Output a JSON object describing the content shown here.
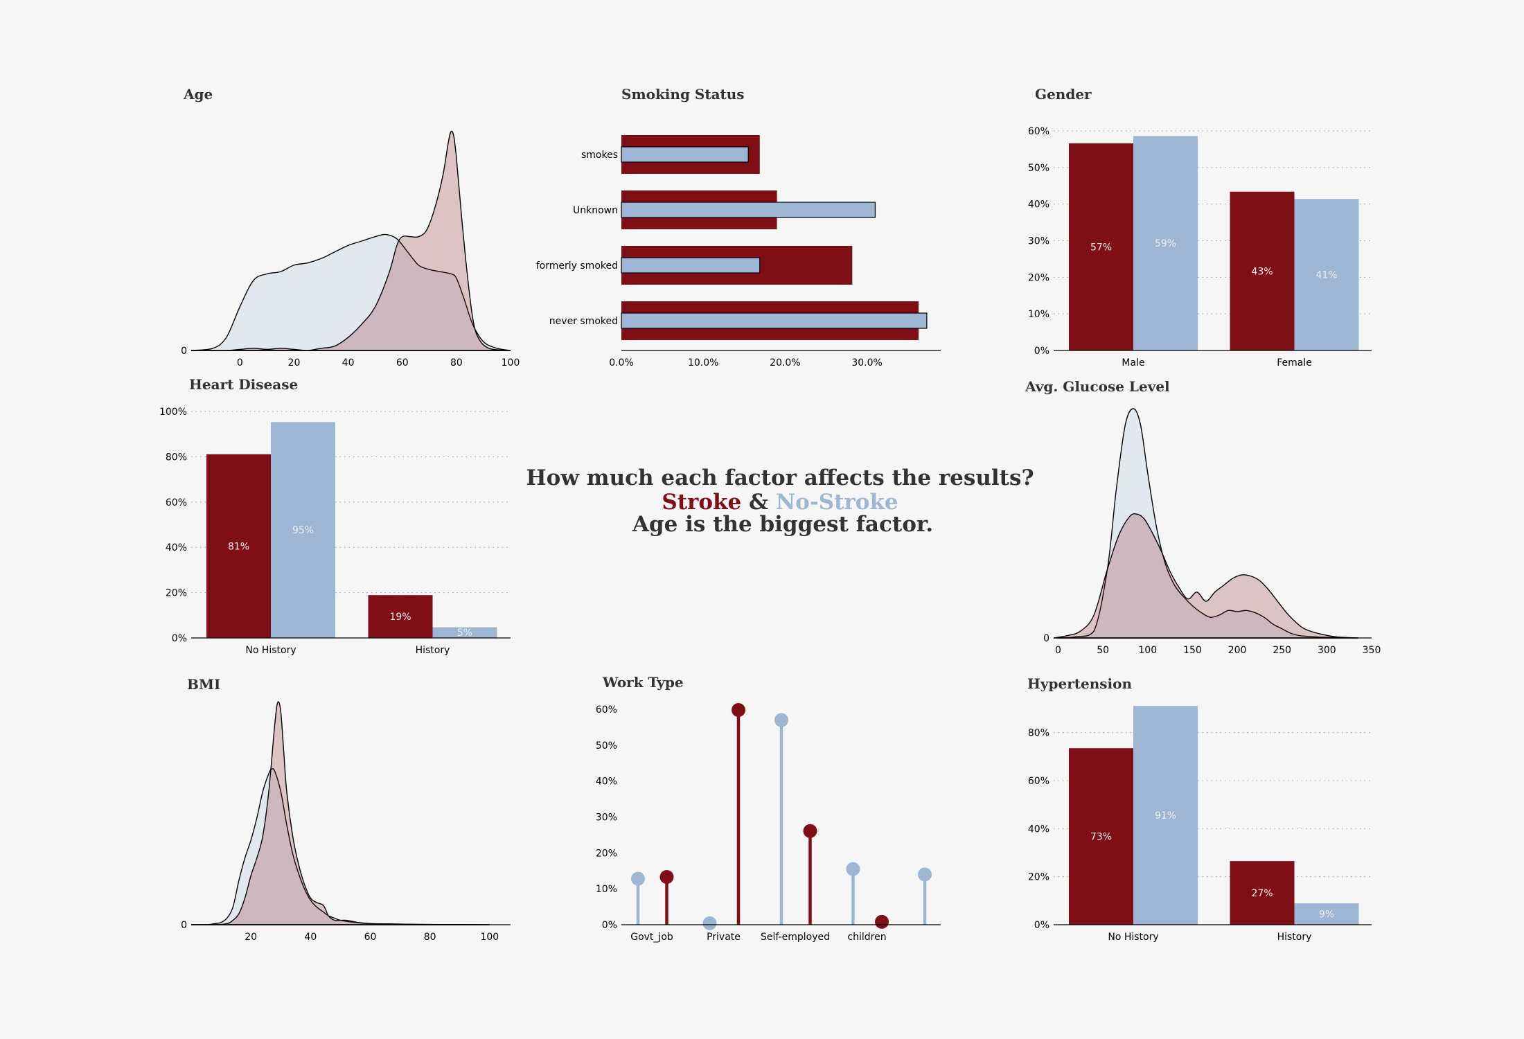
{
  "colors": {
    "stroke": "#800f15",
    "nostroke": "#9cb6d3",
    "text": "#323232"
  },
  "headline": {
    "line1": "How much each factor affects the results?",
    "stroke_word": "Stroke",
    "amp": " & ",
    "nostroke_word": "No-Stroke",
    "line3": "Age is the biggest factor."
  },
  "chart_data": [
    {
      "id": "age",
      "type": "area",
      "title": "Age",
      "xticks": [
        0,
        20,
        40,
        60,
        80,
        100
      ],
      "xlim": [
        -18,
        100
      ],
      "yticks": [
        0
      ],
      "ylim": [
        0,
        1
      ],
      "series": [
        {
          "group": "nostroke",
          "points": [
            [
              -18,
              0
            ],
            [
              -10,
              0.01
            ],
            [
              -5,
              0.06
            ],
            [
              0,
              0.2
            ],
            [
              5,
              0.32
            ],
            [
              10,
              0.35
            ],
            [
              15,
              0.36
            ],
            [
              20,
              0.39
            ],
            [
              25,
              0.4
            ],
            [
              30,
              0.42
            ],
            [
              35,
              0.45
            ],
            [
              40,
              0.48
            ],
            [
              45,
              0.5
            ],
            [
              50,
              0.52
            ],
            [
              54,
              0.53
            ],
            [
              58,
              0.51
            ],
            [
              62,
              0.45
            ],
            [
              66,
              0.39
            ],
            [
              70,
              0.37
            ],
            [
              74,
              0.36
            ],
            [
              78,
              0.35
            ],
            [
              80,
              0.33
            ],
            [
              83,
              0.23
            ],
            [
              86,
              0.12
            ],
            [
              90,
              0.04
            ],
            [
              95,
              0.01
            ],
            [
              100,
              0
            ]
          ]
        },
        {
          "group": "stroke",
          "points": [
            [
              -18,
              0
            ],
            [
              -5,
              0
            ],
            [
              0,
              0.005
            ],
            [
              5,
              0.01
            ],
            [
              10,
              0.005
            ],
            [
              15,
              0.01
            ],
            [
              20,
              0.005
            ],
            [
              25,
              0
            ],
            [
              30,
              0.01
            ],
            [
              35,
              0.02
            ],
            [
              40,
              0.06
            ],
            [
              45,
              0.12
            ],
            [
              50,
              0.2
            ],
            [
              55,
              0.35
            ],
            [
              58,
              0.48
            ],
            [
              60,
              0.52
            ],
            [
              63,
              0.52
            ],
            [
              66,
              0.52
            ],
            [
              69,
              0.55
            ],
            [
              72,
              0.65
            ],
            [
              75,
              0.8
            ],
            [
              77,
              0.95
            ],
            [
              78,
              1.0
            ],
            [
              79,
              0.98
            ],
            [
              80,
              0.88
            ],
            [
              82,
              0.6
            ],
            [
              84,
              0.35
            ],
            [
              86,
              0.15
            ],
            [
              88,
              0.06
            ],
            [
              92,
              0.01
            ],
            [
              100,
              0
            ]
          ]
        }
      ]
    },
    {
      "id": "smoking",
      "type": "bar",
      "title": "Smoking Status",
      "categories": [
        "smokes",
        "Unknown",
        "formerly smoked",
        "never smoked"
      ],
      "series": [
        {
          "group": "stroke",
          "values": [
            16.9,
            19.0,
            28.2,
            36.3
          ]
        },
        {
          "group": "nostroke",
          "values": [
            15.5,
            31.0,
            16.9,
            37.3
          ]
        }
      ],
      "xticks": [
        "0.0%",
        "10.0%",
        "20.0%",
        "30.0%"
      ],
      "xlim": [
        0,
        39
      ]
    },
    {
      "id": "gender",
      "type": "bar",
      "title": "Gender",
      "categories": [
        "Male",
        "Female"
      ],
      "series": [
        {
          "group": "stroke",
          "values": [
            56.6,
            43.4
          ],
          "labels": [
            "57%",
            "43%"
          ]
        },
        {
          "group": "nostroke",
          "values": [
            58.6,
            41.4
          ],
          "labels": [
            "59%",
            "41%"
          ]
        }
      ],
      "yticks": [
        "0%",
        "10%",
        "20%",
        "30%",
        "40%",
        "50%",
        "60%"
      ],
      "ylim": [
        0,
        60
      ],
      "grid": true
    },
    {
      "id": "heart",
      "type": "bar",
      "title": "Heart Disease",
      "categories": [
        "No History",
        "History"
      ],
      "series": [
        {
          "group": "stroke",
          "values": [
            81.1,
            18.9
          ],
          "labels": [
            "81%",
            "19%"
          ]
        },
        {
          "group": "nostroke",
          "values": [
            95.3,
            4.7
          ],
          "labels": [
            "95%",
            "5%"
          ]
        }
      ],
      "yticks": [
        "0%",
        "20%",
        "40%",
        "60%",
        "80%",
        "100%"
      ],
      "ylim": [
        0,
        100
      ],
      "grid": true
    },
    {
      "id": "glucose",
      "type": "area",
      "title": "Avg. Glucose Level",
      "xticks": [
        0,
        50,
        100,
        150,
        200,
        250,
        300,
        350
      ],
      "xlim": [
        -5,
        350
      ],
      "yticks": [
        0
      ],
      "ylim": [
        0,
        1
      ],
      "series": [
        {
          "group": "nostroke",
          "points": [
            [
              0,
              0
            ],
            [
              20,
              0.005
            ],
            [
              40,
              0.03
            ],
            [
              55,
              0.3
            ],
            [
              65,
              0.65
            ],
            [
              75,
              0.93
            ],
            [
              84,
              1.0
            ],
            [
              92,
              0.93
            ],
            [
              100,
              0.72
            ],
            [
              110,
              0.48
            ],
            [
              120,
              0.32
            ],
            [
              130,
              0.23
            ],
            [
              140,
              0.18
            ],
            [
              150,
              0.14
            ],
            [
              160,
              0.11
            ],
            [
              170,
              0.09
            ],
            [
              180,
              0.1
            ],
            [
              190,
              0.12
            ],
            [
              200,
              0.115
            ],
            [
              210,
              0.12
            ],
            [
              220,
              0.11
            ],
            [
              230,
              0.09
            ],
            [
              240,
              0.06
            ],
            [
              250,
              0.04
            ],
            [
              260,
              0.02
            ],
            [
              270,
              0.01
            ],
            [
              290,
              0.004
            ],
            [
              310,
              0.002
            ],
            [
              335,
              0
            ]
          ]
        },
        {
          "group": "stroke",
          "points": [
            [
              -5,
              0
            ],
            [
              10,
              0.01
            ],
            [
              25,
              0.03
            ],
            [
              40,
              0.1
            ],
            [
              55,
              0.3
            ],
            [
              68,
              0.45
            ],
            [
              80,
              0.53
            ],
            [
              88,
              0.54
            ],
            [
              96,
              0.52
            ],
            [
              105,
              0.46
            ],
            [
              115,
              0.38
            ],
            [
              125,
              0.29
            ],
            [
              135,
              0.22
            ],
            [
              145,
              0.17
            ],
            [
              155,
              0.2
            ],
            [
              165,
              0.16
            ],
            [
              175,
              0.2
            ],
            [
              185,
              0.23
            ],
            [
              195,
              0.26
            ],
            [
              205,
              0.275
            ],
            [
              215,
              0.27
            ],
            [
              225,
              0.25
            ],
            [
              235,
              0.21
            ],
            [
              245,
              0.16
            ],
            [
              255,
              0.11
            ],
            [
              265,
              0.07
            ],
            [
              275,
              0.04
            ],
            [
              290,
              0.02
            ],
            [
              310,
              0.005
            ],
            [
              335,
              0
            ]
          ]
        }
      ]
    },
    {
      "id": "bmi",
      "type": "area",
      "title": "BMI",
      "xticks": [
        20,
        40,
        60,
        80,
        100
      ],
      "xlim": [
        0,
        107
      ],
      "yticks": [
        0
      ],
      "ylim": [
        0,
        1
      ],
      "series": [
        {
          "group": "nostroke",
          "points": [
            [
              0,
              0
            ],
            [
              5,
              0
            ],
            [
              8,
              0.005
            ],
            [
              10,
              0.01
            ],
            [
              12,
              0.03
            ],
            [
              14,
              0.08
            ],
            [
              16,
              0.2
            ],
            [
              18,
              0.3
            ],
            [
              20,
              0.38
            ],
            [
              22,
              0.48
            ],
            [
              24,
              0.6
            ],
            [
              26,
              0.68
            ],
            [
              27,
              0.7
            ],
            [
              28,
              0.69
            ],
            [
              30,
              0.6
            ],
            [
              32,
              0.45
            ],
            [
              34,
              0.32
            ],
            [
              36,
              0.23
            ],
            [
              38,
              0.16
            ],
            [
              40,
              0.11
            ],
            [
              42,
              0.08
            ],
            [
              44,
              0.06
            ],
            [
              46,
              0.04
            ],
            [
              48,
              0.03
            ],
            [
              50,
              0.02
            ],
            [
              55,
              0.01
            ],
            [
              60,
              0.005
            ],
            [
              70,
              0.003
            ],
            [
              80,
              0.001
            ],
            [
              100,
              0
            ]
          ]
        },
        {
          "group": "stroke",
          "points": [
            [
              0,
              0
            ],
            [
              8,
              0
            ],
            [
              12,
              0.005
            ],
            [
              14,
              0.02
            ],
            [
              16,
              0.05
            ],
            [
              18,
              0.12
            ],
            [
              20,
              0.22
            ],
            [
              22,
              0.3
            ],
            [
              24,
              0.4
            ],
            [
              26,
              0.6
            ],
            [
              28,
              0.9
            ],
            [
              29,
              1.0
            ],
            [
              30,
              0.96
            ],
            [
              31,
              0.78
            ],
            [
              32,
              0.6
            ],
            [
              34,
              0.4
            ],
            [
              36,
              0.27
            ],
            [
              38,
              0.18
            ],
            [
              40,
              0.12
            ],
            [
              42,
              0.1
            ],
            [
              44,
              0.09
            ],
            [
              45,
              0.07
            ],
            [
              46,
              0.04
            ],
            [
              48,
              0.02
            ],
            [
              50,
              0.02
            ],
            [
              52,
              0.02
            ],
            [
              54,
              0.015
            ],
            [
              56,
              0.01
            ],
            [
              60,
              0.005
            ],
            [
              70,
              0.002
            ],
            [
              100,
              0
            ]
          ]
        }
      ]
    },
    {
      "id": "work",
      "type": "lollipop",
      "title": "Work Type",
      "categories": [
        "Govt_job",
        "Private",
        "Self-employed",
        "children",
        ""
      ],
      "series": [
        {
          "group": "nostroke",
          "values": [
            12.8,
            0.4,
            57.0,
            15.5,
            14.0
          ]
        },
        {
          "group": "stroke",
          "values": [
            13.3,
            59.8,
            26.1,
            0.8,
            null
          ]
        }
      ],
      "yticks": [
        "0%",
        "10%",
        "20%",
        "30%",
        "40%",
        "50%",
        "60%"
      ],
      "ylim": [
        0,
        60
      ]
    },
    {
      "id": "hyper",
      "type": "bar",
      "title": "Hypertension",
      "categories": [
        "No History",
        "History"
      ],
      "series": [
        {
          "group": "stroke",
          "values": [
            73.5,
            26.5
          ],
          "labels": [
            "73%",
            "27%"
          ]
        },
        {
          "group": "nostroke",
          "values": [
            91.1,
            8.9
          ],
          "labels": [
            "91%",
            "9%"
          ]
        }
      ],
      "yticks": [
        "0%",
        "20%",
        "40%",
        "60%",
        "80%"
      ],
      "ylim": [
        0,
        90
      ],
      "grid": true
    }
  ]
}
